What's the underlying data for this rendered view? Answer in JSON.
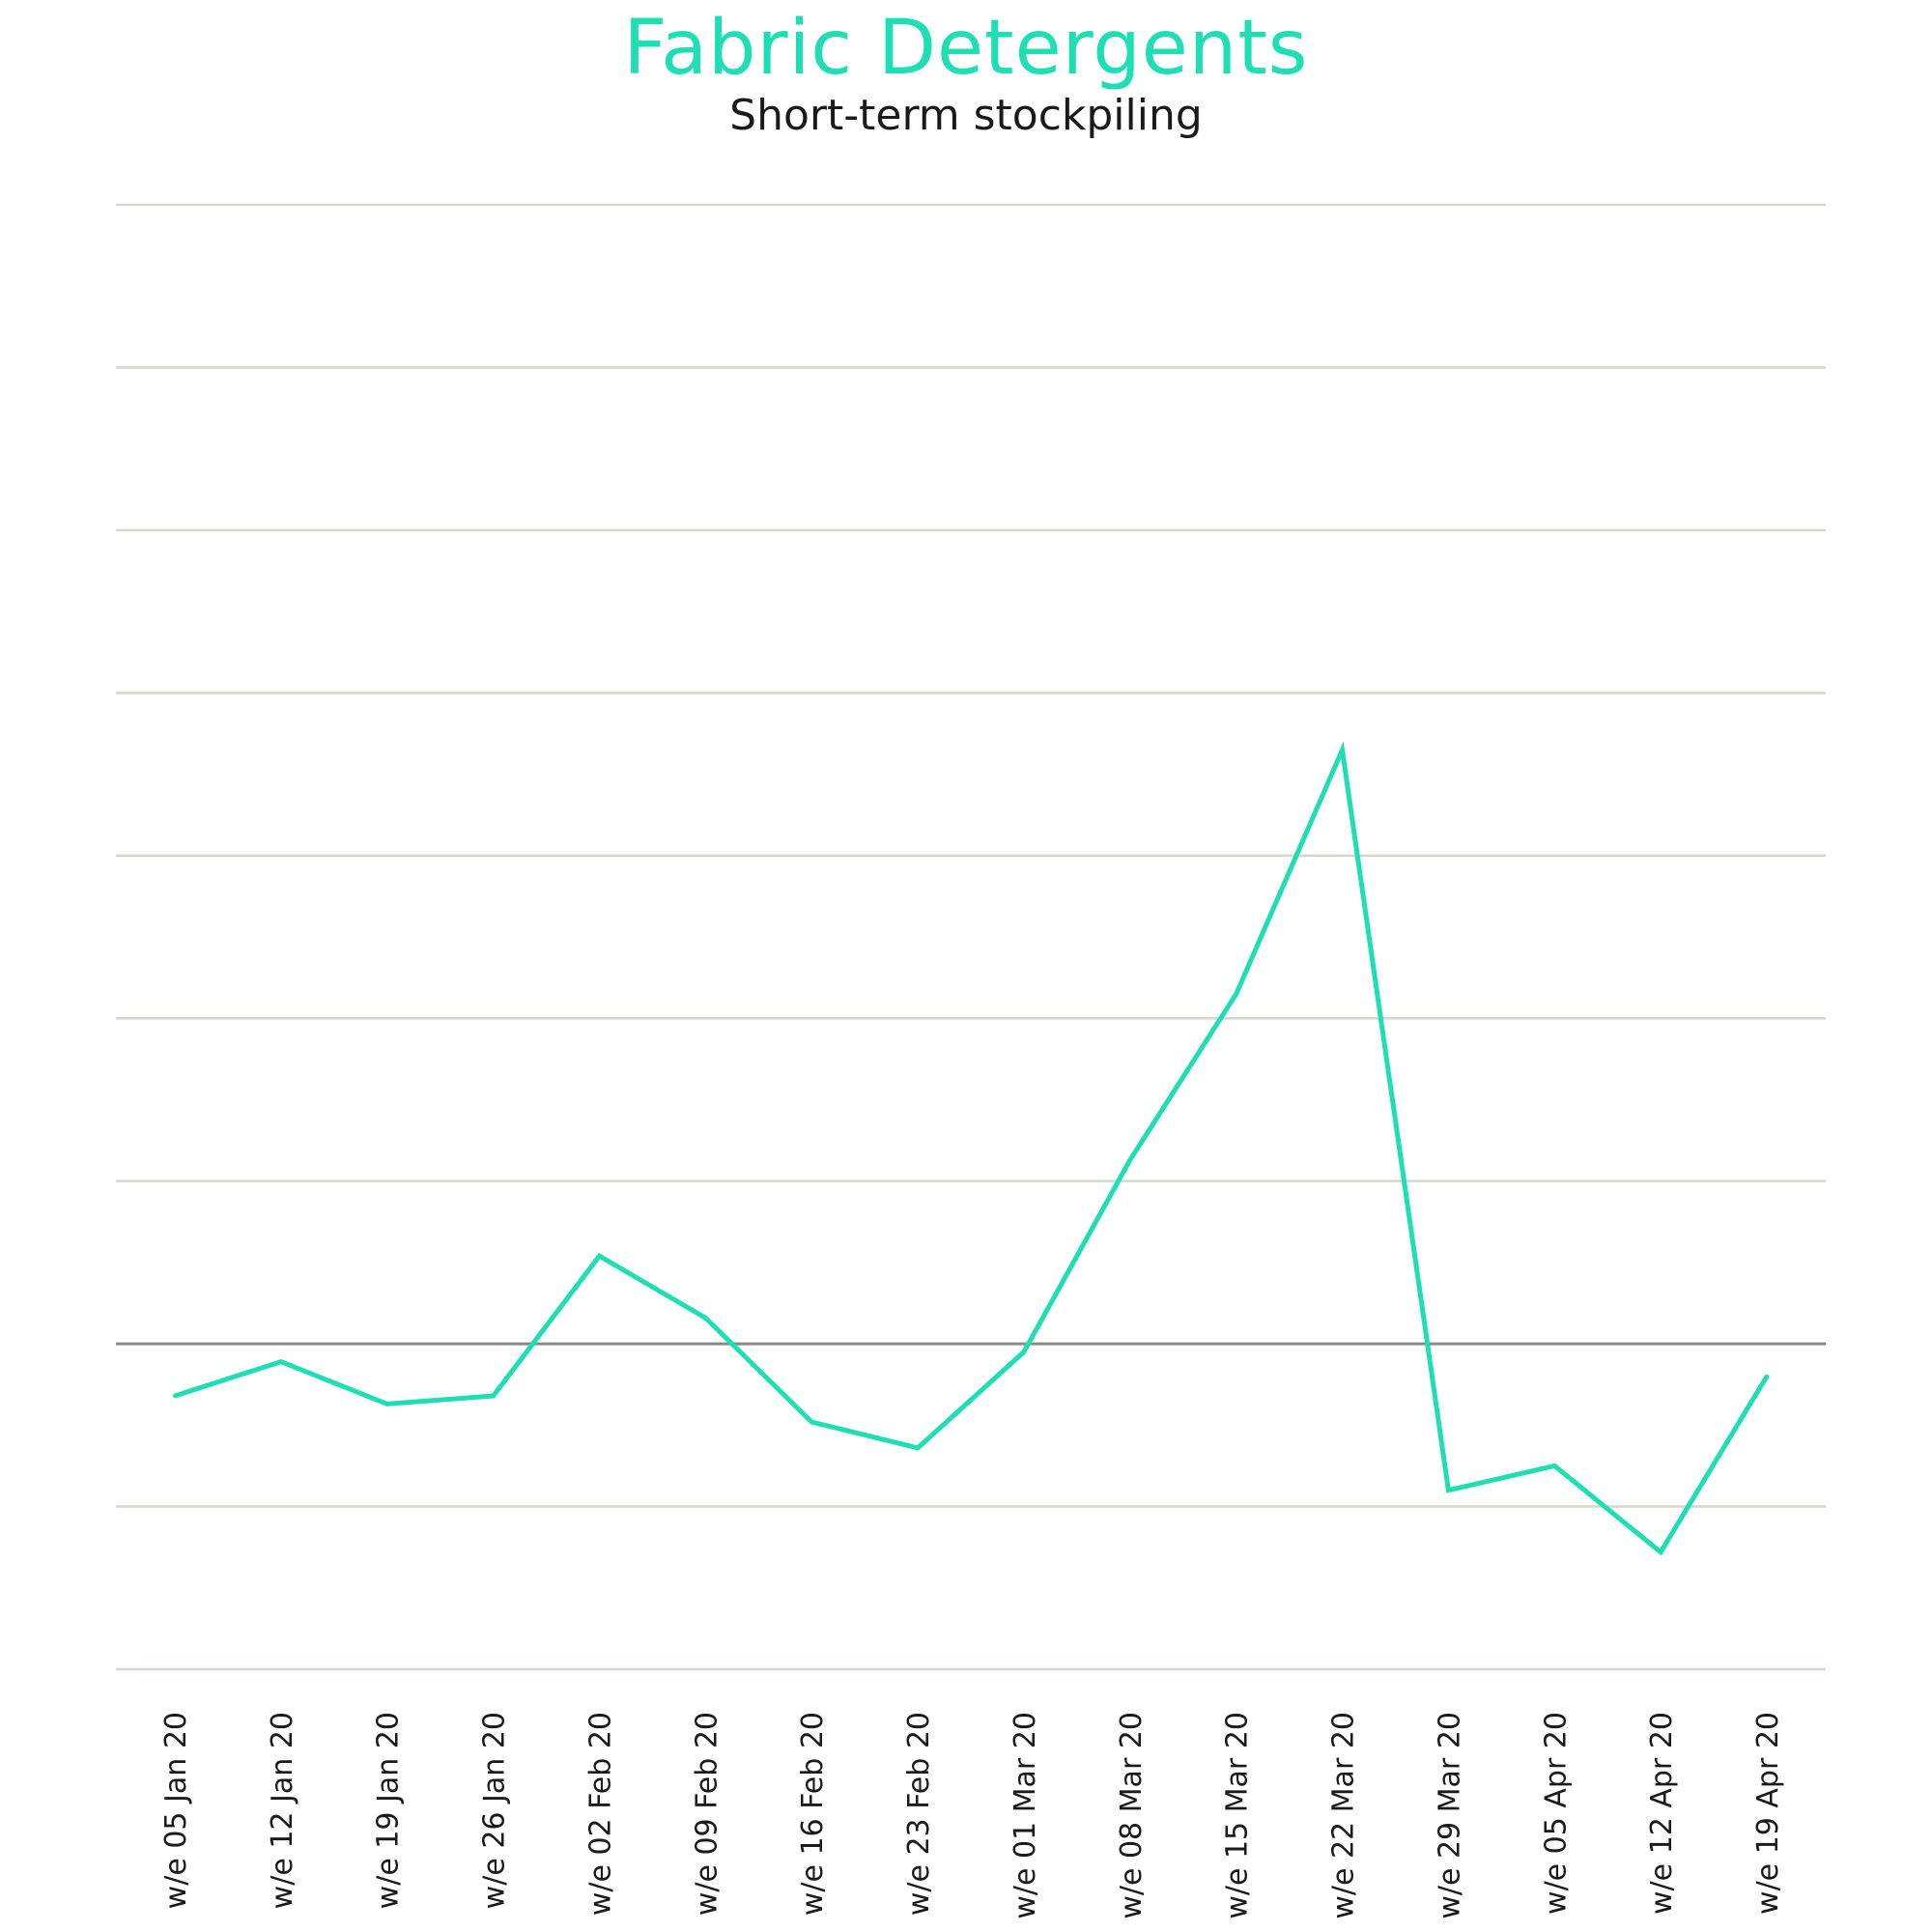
{
  "chart_data": {
    "type": "line",
    "title": "Fabric Detergents",
    "subtitle": "Short-term stockpiling",
    "xlabel": "",
    "ylabel": "",
    "categories": [
      "w/e 05 Jan 20",
      "w/e 12 Jan 20",
      "w/e 19 Jan 20",
      "w/e 26 Jan 20",
      "w/e 02 Feb 20",
      "w/e 09 Feb 20",
      "w/e 16 Feb 20",
      "w/e 23 Feb 20",
      "w/e 01 Mar 20",
      "w/e 08 Mar 20",
      "w/e 15 Mar 20",
      "w/e 22 Mar 20",
      "w/e 29 Mar 20",
      "w/e 05 Apr 20",
      "w/e 12 Apr 20",
      "w/e 19 Apr 20"
    ],
    "series": [
      {
        "values": [
          -0.32,
          -0.11,
          -0.37,
          -0.32,
          0.54,
          0.16,
          -0.48,
          -0.64,
          -0.05,
          1.13,
          2.15,
          3.65,
          -0.9,
          -0.75,
          -1.28,
          -0.2
        ]
      }
    ],
    "ylim": [
      -2,
      7
    ],
    "baseline": 0,
    "gridlines": [
      -2,
      -1,
      0,
      1,
      2,
      3,
      4,
      5,
      6,
      7
    ],
    "grid": true,
    "y_tick_labels_shown": false,
    "legend": "none",
    "colors": {
      "title": "#1ddfb3",
      "line": "#1ddfb3",
      "grid": "#d6d6cc",
      "baseline": "#8a8a84"
    }
  }
}
